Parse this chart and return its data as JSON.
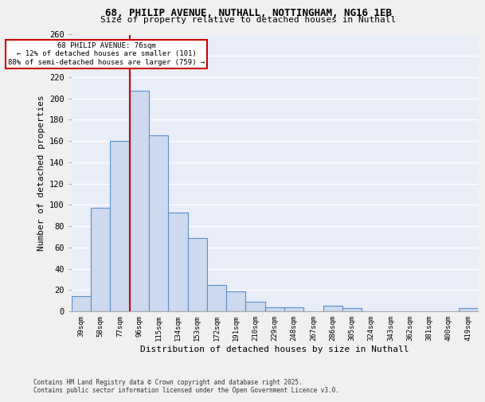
{
  "title1": "68, PHILIP AVENUE, NUTHALL, NOTTINGHAM, NG16 1EB",
  "title2": "Size of property relative to detached houses in Nuthall",
  "xlabel": "Distribution of detached houses by size in Nuthall",
  "ylabel": "Number of detached properties",
  "categories": [
    "39sqm",
    "58sqm",
    "77sqm",
    "96sqm",
    "115sqm",
    "134sqm",
    "153sqm",
    "172sqm",
    "191sqm",
    "210sqm",
    "229sqm",
    "248sqm",
    "267sqm",
    "286sqm",
    "305sqm",
    "324sqm",
    "343sqm",
    "362sqm",
    "381sqm",
    "400sqm",
    "419sqm"
  ],
  "values": [
    14,
    97,
    160,
    207,
    165,
    93,
    69,
    25,
    19,
    9,
    4,
    4,
    0,
    5,
    3,
    0,
    0,
    0,
    0,
    0,
    3
  ],
  "bar_color": "#ccd9ee",
  "bar_edge_color": "#5b8fc9",
  "red_line_index": 2,
  "annotation_line1": "68 PHILIP AVENUE: 76sqm",
  "annotation_line2": "← 12% of detached houses are smaller (101)",
  "annotation_line3": "88% of semi-detached houses are larger (759) →",
  "annotation_box_color": "#ffffff",
  "annotation_box_edge": "#cc0000",
  "red_line_color": "#cc0000",
  "background_color": "#e8edf8",
  "grid_color": "#ffffff",
  "fig_bg_color": "#f0f0f0",
  "ylim": [
    0,
    260
  ],
  "yticks": [
    0,
    20,
    40,
    60,
    80,
    100,
    120,
    140,
    160,
    180,
    200,
    220,
    240,
    260
  ],
  "footer1": "Contains HM Land Registry data © Crown copyright and database right 2025.",
  "footer2": "Contains public sector information licensed under the Open Government Licence v3.0."
}
